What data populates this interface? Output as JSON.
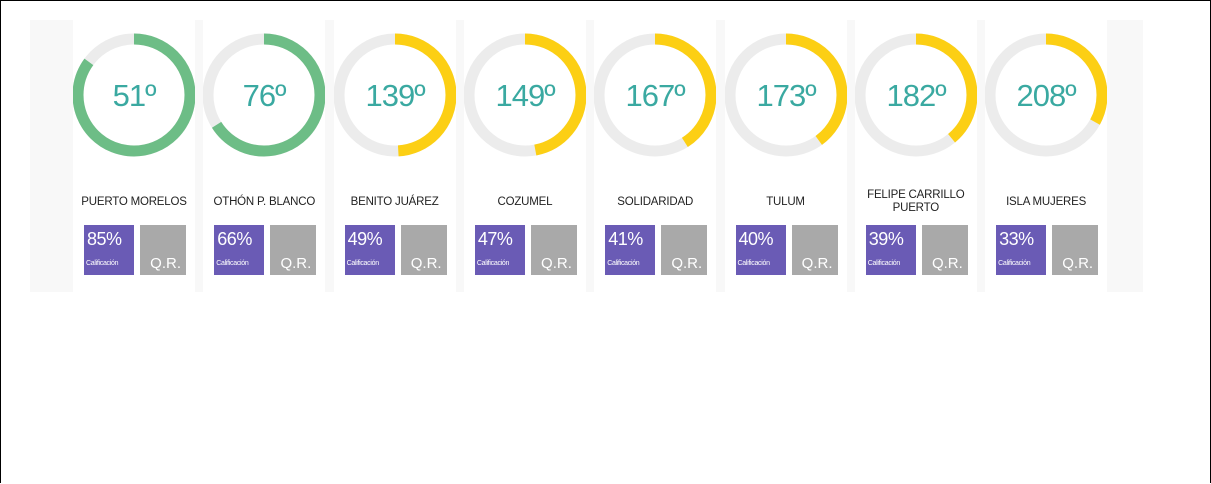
{
  "cards": [
    {
      "rank": "51º",
      "name": "PUERTO MORELOS",
      "score": 85,
      "score_label": "85%",
      "color": "#6dbd86"
    },
    {
      "rank": "76º",
      "name": "OTHÓN P. BLANCO",
      "score": 66,
      "score_label": "66%",
      "color": "#6dbd86"
    },
    {
      "rank": "139º",
      "name": "BENITO JUÁREZ",
      "score": 49,
      "score_label": "49%",
      "color": "#fccf14"
    },
    {
      "rank": "149º",
      "name": "COZUMEL",
      "score": 47,
      "score_label": "47%",
      "color": "#fccf14"
    },
    {
      "rank": "167º",
      "name": "SOLIDARIDAD",
      "score": 41,
      "score_label": "41%",
      "color": "#fccf14"
    },
    {
      "rank": "173º",
      "name": "TULUM",
      "score": 40,
      "score_label": "40%",
      "color": "#fccf14"
    },
    {
      "rank": "182º",
      "name": "FELIPE CARRILLO PUERTO",
      "score": 39,
      "score_label": "39%",
      "color": "#fccf14"
    },
    {
      "rank": "208º",
      "name": "ISLA MUJERES",
      "score": 33,
      "score_label": "33%",
      "color": "#fccf14"
    }
  ],
  "score_caption": "Calificación",
  "state_label": "Q.R."
}
